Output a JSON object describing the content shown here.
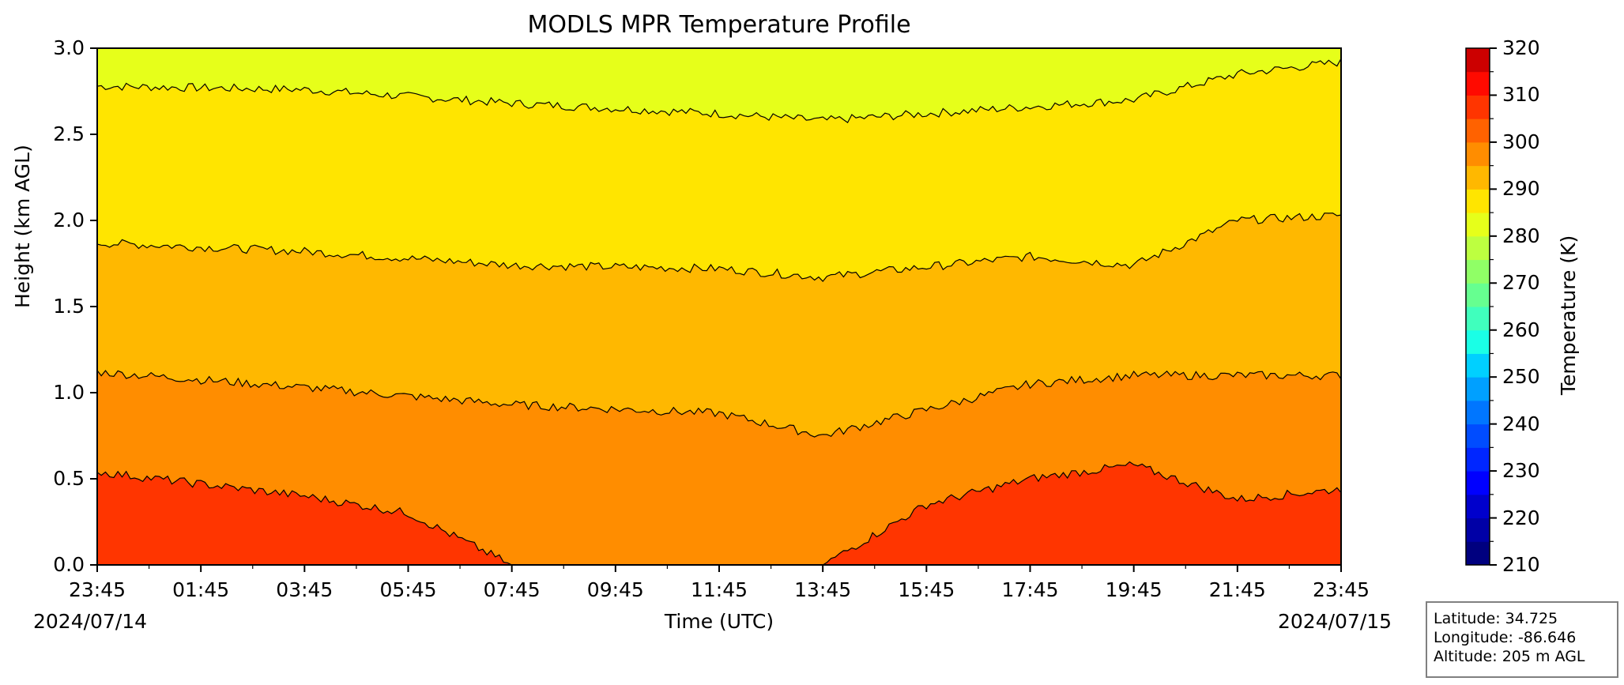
{
  "chart_data": {
    "type": "heatmap",
    "title": "MODLS MPR Temperature Profile",
    "xlabel": "Time (UTC)",
    "ylabel": "Height (km AGL)",
    "colorbar_label": "Temperature (K)",
    "x_ticks": [
      "23:45",
      "01:45",
      "03:45",
      "05:45",
      "07:45",
      "09:45",
      "11:45",
      "13:45",
      "15:45",
      "17:45",
      "19:45",
      "21:45",
      "23:45"
    ],
    "x_start_date": "2024/07/14",
    "x_end_date": "2024/07/15",
    "y_ticks": [
      "0.0",
      "0.5",
      "1.0",
      "1.5",
      "2.0",
      "2.5",
      "3.0"
    ],
    "ylim": [
      0,
      3
    ],
    "colorbar_ticks": [
      "210",
      "220",
      "230",
      "240",
      "250",
      "260",
      "270",
      "280",
      "290",
      "300",
      "310",
      "320"
    ],
    "colorbar_range": [
      210,
      320
    ],
    "colorbar_step": 5,
    "colorbar_colors": [
      "#00007f",
      "#0000a6",
      "#0000cc",
      "#0000ff",
      "#0026ff",
      "#004cff",
      "#0076ff",
      "#00a0ff",
      "#00d0ff",
      "#1affe6",
      "#40ffbd",
      "#66ff90",
      "#90ff66",
      "#bdff40",
      "#e6ff1a",
      "#ffe500",
      "#ffb800",
      "#ff8d00",
      "#ff6200",
      "#ff3500",
      "#ff0a00",
      "#cc0000"
    ],
    "contour_levels_K": [
      285,
      290,
      295,
      300,
      305
    ],
    "contour_heights_km": [
      {
        "level": 285,
        "times": [
          "23:45",
          "03:45",
          "07:45",
          "11:45",
          "13:45",
          "17:45",
          "19:45",
          "21:45",
          "23:45"
        ],
        "heights": [
          2.78,
          2.76,
          2.68,
          2.62,
          2.58,
          2.66,
          2.7,
          2.85,
          2.92
        ]
      },
      {
        "level": 290,
        "times": [
          "23:45",
          "03:45",
          "07:45",
          "11:45",
          "13:45",
          "17:45",
          "19:45",
          "21:45",
          "23:45"
        ],
        "heights": [
          1.87,
          1.82,
          1.74,
          1.72,
          1.67,
          1.79,
          1.74,
          2.0,
          2.03
        ]
      },
      {
        "level": 295,
        "times": [
          "23:45",
          "03:45",
          "07:45",
          "11:45",
          "13:45",
          "17:45",
          "19:45",
          "21:45",
          "23:45"
        ],
        "heights": [
          1.12,
          1.03,
          0.93,
          0.88,
          0.75,
          1.05,
          1.1,
          1.1,
          1.1
        ]
      },
      {
        "level": 300,
        "times": [
          "23:45",
          "03:45",
          "05:45",
          "07:45",
          "11:45",
          "13:45",
          "15:45",
          "17:45",
          "19:45",
          "21:45",
          "23:45"
        ],
        "heights": [
          0.54,
          0.4,
          0.3,
          0.0,
          0.0,
          0.0,
          0.35,
          0.5,
          0.58,
          0.38,
          0.44
        ]
      }
    ]
  },
  "info": {
    "latitude": "Latitude: 34.725",
    "longitude": "Longitude: -86.646",
    "altitude": "Altitude: 205 m AGL"
  }
}
